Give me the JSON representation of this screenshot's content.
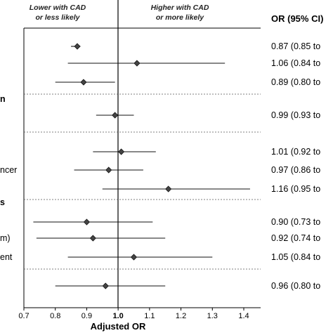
{
  "chart_data": {
    "type": "forest",
    "header_left": [
      "Lower with CAD",
      "or less likely"
    ],
    "header_right": [
      "Higher with CAD",
      "or more likely"
    ],
    "or_column_header": "OR (95% CI)",
    "xlabel": "Adjusted OR",
    "xlim": [
      0.7,
      1.4
    ],
    "ticks": [
      "0.7",
      "0.8",
      "0.9",
      "1.0",
      "1.1",
      "1.2",
      "1.3",
      "1.4"
    ],
    "reference_value": 1.0,
    "groups": [
      {
        "label": "",
        "rows": [
          {
            "label": "",
            "or": 0.87,
            "lo": 0.85,
            "hi": 0.88,
            "or_text": "0.87 (0.85 to"
          },
          {
            "label": "",
            "or": 1.06,
            "lo": 0.84,
            "hi": 1.34,
            "or_text": "1.06 (0.84 to"
          },
          {
            "label": "",
            "or": 0.89,
            "lo": 0.8,
            "hi": 0.99,
            "or_text": "0.89 (0.80 to"
          }
        ]
      },
      {
        "label": "n",
        "rows": [
          {
            "label": "",
            "or": 0.99,
            "lo": 0.93,
            "hi": 1.05,
            "or_text": "0.99 (0.93 to"
          }
        ]
      },
      {
        "label": "",
        "rows": [
          {
            "label": "",
            "or": 1.01,
            "lo": 0.92,
            "hi": 1.12,
            "or_text": "1.01 (0.92 to"
          },
          {
            "label": "ncer",
            "or": 0.97,
            "lo": 0.86,
            "hi": 1.08,
            "or_text": "0.97 (0.86 to"
          },
          {
            "label": "",
            "or": 1.16,
            "lo": 0.95,
            "hi": 1.42,
            "or_text": "1.16 (0.95 to"
          }
        ]
      },
      {
        "label": "s",
        "rows": [
          {
            "label": "",
            "or": 0.9,
            "lo": 0.73,
            "hi": 1.11,
            "or_text": "0.90 (0.73 to"
          },
          {
            "label": "m)",
            "or": 0.92,
            "lo": 0.74,
            "hi": 1.15,
            "or_text": "0.92 (0.74 to"
          },
          {
            "label": "ent",
            "or": 1.05,
            "lo": 0.84,
            "hi": 1.3,
            "or_text": "1.05 (0.84 to"
          }
        ]
      },
      {
        "label": "",
        "rows": [
          {
            "label": "",
            "or": 0.96,
            "lo": 0.8,
            "hi": 1.15,
            "or_text": "0.96 (0.80 to"
          }
        ]
      }
    ]
  }
}
